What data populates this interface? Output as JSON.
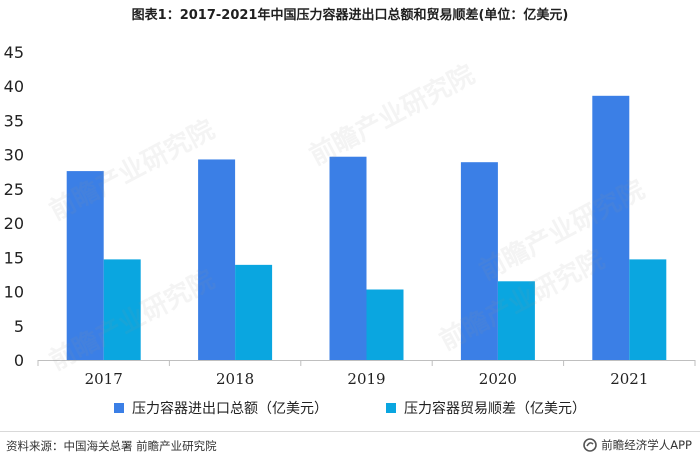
{
  "chart_data": {
    "type": "bar",
    "title": "图表1：2017-2021年中国压力容器进出口总额和贸易顺差(单位：亿美元)",
    "categories": [
      "2017",
      "2018",
      "2019",
      "2020",
      "2021"
    ],
    "series": [
      {
        "name": "压力容器进出口总额（亿美元）",
        "values": [
          27.6,
          29.3,
          29.7,
          28.9,
          38.6
        ],
        "color": "#3b7fe6"
      },
      {
        "name": "压力容器贸易顺差（亿美元）",
        "values": [
          14.7,
          13.9,
          10.3,
          11.5,
          14.7
        ],
        "color": "#0aa6e0"
      }
    ],
    "ylim": [
      0,
      45
    ],
    "yticks": [
      0,
      5,
      10,
      15,
      20,
      25,
      30,
      35,
      40,
      45
    ],
    "xlabel": "",
    "ylabel": "",
    "grid": false,
    "legend_position": "bottom"
  },
  "footer": {
    "source": "资料来源：中国海关总署 前瞻产业研究院",
    "brand": "前瞻经济学人APP",
    "brand_icon": "qianzhan-logo-icon"
  },
  "watermark": "前瞻产业研究院"
}
